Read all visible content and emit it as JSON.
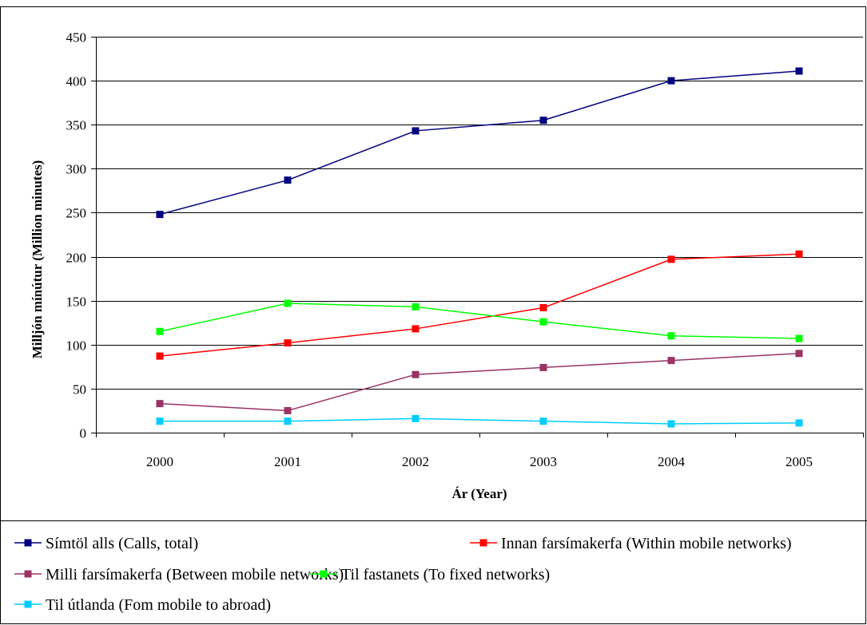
{
  "chart_data": {
    "type": "line",
    "xlabel": "Ár (Year)",
    "ylabel": "Milljón mínútur (Million minutes)",
    "categories": [
      "2000",
      "2001",
      "2002",
      "2003",
      "2004",
      "2005"
    ],
    "ylim": [
      0,
      450
    ],
    "yticks": [
      "0",
      "50",
      "100",
      "150",
      "200",
      "250",
      "300",
      "350",
      "400",
      "450"
    ],
    "grid": true,
    "legend_position": "bottom",
    "series": [
      {
        "name": "Símtöl alls (Calls, total)",
        "color": "#000080",
        "values": [
          248,
          287,
          343,
          355,
          400,
          411
        ]
      },
      {
        "name": "Innan farsímakerfa (Within mobile networks)",
        "color": "#ff0000",
        "values": [
          87,
          102,
          118,
          142,
          197,
          203
        ]
      },
      {
        "name": "Milli farsímakerfa (Between mobile networks)",
        "color": "#993366",
        "values": [
          33,
          25,
          66,
          74,
          82,
          90
        ]
      },
      {
        "name": "Til fastanets (To fixed networks)",
        "color": "#00ff00",
        "values": [
          115,
          147,
          143,
          126,
          110,
          107
        ]
      },
      {
        "name": "Til útlanda (Fom mobile to abroad)",
        "color": "#00ccff",
        "values": [
          13,
          13,
          16,
          13,
          10,
          11
        ]
      }
    ]
  }
}
